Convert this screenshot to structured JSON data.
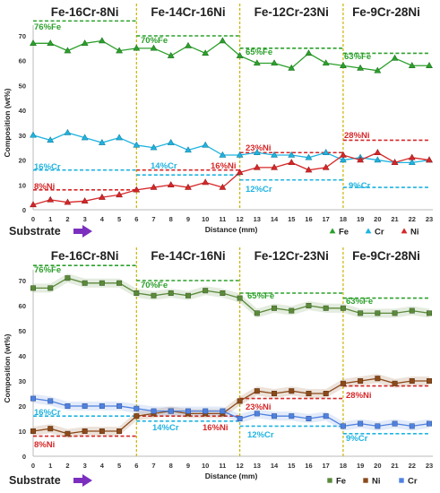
{
  "chart_data": [
    {
      "type": "line",
      "title": "",
      "xlabel": "Distance (mm)",
      "ylabel": "Composition (wt%)",
      "x": [
        0,
        1,
        2,
        3,
        4,
        5,
        6,
        7,
        8,
        9,
        10,
        11,
        12,
        13,
        14,
        15,
        16,
        17,
        18,
        19,
        20,
        21,
        22,
        23
      ],
      "xlim": [
        0,
        23
      ],
      "ylim": [
        0,
        70
      ],
      "yticks": [
        0,
        10,
        20,
        30,
        40,
        50,
        60,
        70
      ],
      "grid": false,
      "legend": "bottom-right",
      "substrate_label": "Substrate",
      "regions": [
        {
          "label": "Fe-16Cr-8Ni",
          "x_start": 0,
          "x_end": 6
        },
        {
          "label": "Fe-14Cr-16Ni",
          "x_start": 6,
          "x_end": 12
        },
        {
          "label": "Fe-12Cr-23Ni",
          "x_start": 12,
          "x_end": 18
        },
        {
          "label": "Fe-9Cr-28Ni",
          "x_start": 18,
          "x_end": 23
        }
      ],
      "boundaries": [
        6,
        12,
        18
      ],
      "series": [
        {
          "name": "Fe",
          "color": "#2ca02c",
          "marker": "triangle",
          "values": [
            67,
            67,
            64,
            67,
            68,
            64,
            65,
            65,
            62,
            66,
            63,
            68,
            62,
            59,
            59,
            57,
            63,
            59,
            58,
            57,
            56,
            61,
            58,
            58
          ]
        },
        {
          "name": "Cr",
          "color": "#1fb3e0",
          "marker": "triangle",
          "values": [
            30,
            28,
            31,
            29,
            27,
            29,
            26,
            25,
            27,
            24,
            26,
            22,
            22,
            23,
            22,
            22,
            21,
            23,
            20,
            21,
            20,
            19,
            19,
            20
          ]
        },
        {
          "name": "Ni",
          "color": "#d62728",
          "marker": "triangle",
          "values": [
            2,
            4,
            3,
            3.5,
            5,
            6,
            8,
            9,
            10,
            9,
            11,
            9,
            15,
            17,
            17,
            19,
            16,
            17,
            22,
            20,
            23,
            19,
            21,
            20
          ]
        }
      ],
      "nominal": [
        {
          "label": "76%Fe",
          "value": 76,
          "x_start": 0,
          "x_end": 6,
          "color": "#2ca02c"
        },
        {
          "label": "70%Fe",
          "value": 70,
          "x_start": 6,
          "x_end": 12,
          "color": "#2ca02c"
        },
        {
          "label": "65%Fe",
          "value": 65,
          "x_start": 12,
          "x_end": 18,
          "color": "#2ca02c"
        },
        {
          "label": "63%Fe",
          "value": 63,
          "x_start": 18,
          "x_end": 23,
          "color": "#2ca02c"
        },
        {
          "label": "16%Cr",
          "value": 16,
          "x_start": 0,
          "x_end": 6,
          "color": "#1fb3e0"
        },
        {
          "label": "14%Cr",
          "value": 14,
          "x_start": 6,
          "x_end": 12,
          "color": "#1fb3e0"
        },
        {
          "label": "12%Cr",
          "value": 12,
          "x_start": 12,
          "x_end": 18,
          "color": "#1fb3e0"
        },
        {
          "label": "9%Cr",
          "value": 9,
          "x_start": 18,
          "x_end": 23,
          "color": "#1fb3e0"
        },
        {
          "label": "8%Ni",
          "value": 8,
          "x_start": 0,
          "x_end": 6,
          "color": "#d62728"
        },
        {
          "label": "16%Ni",
          "value": 16,
          "x_start": 6,
          "x_end": 12,
          "color": "#d62728"
        },
        {
          "label": "23%Ni",
          "value": 23,
          "x_start": 12,
          "x_end": 18,
          "color": "#d62728"
        },
        {
          "label": "28%Ni",
          "value": 28,
          "x_start": 18,
          "x_end": 23,
          "color": "#d62728"
        }
      ]
    },
    {
      "type": "line",
      "title": "",
      "xlabel": "Distance (mm)",
      "ylabel": "Composition (wt%)",
      "x": [
        0,
        1,
        2,
        3,
        4,
        5,
        6,
        7,
        8,
        9,
        10,
        11,
        12,
        13,
        14,
        15,
        16,
        17,
        18,
        19,
        20,
        21,
        22,
        23
      ],
      "xlim": [
        0,
        23
      ],
      "ylim": [
        0,
        70
      ],
      "yticks": [
        0,
        10,
        20,
        30,
        40,
        50,
        60,
        70
      ],
      "grid": false,
      "legend": "bottom-right",
      "substrate_label": "Substrate",
      "regions": [
        {
          "label": "Fe-16Cr-8Ni",
          "x_start": 0,
          "x_end": 6
        },
        {
          "label": "Fe-14Cr-16Ni",
          "x_start": 6,
          "x_end": 12
        },
        {
          "label": "Fe-12Cr-23Ni",
          "x_start": 12,
          "x_end": 18
        },
        {
          "label": "Fe-9Cr-28Ni",
          "x_start": 18,
          "x_end": 23
        }
      ],
      "boundaries": [
        6,
        12,
        18
      ],
      "series": [
        {
          "name": "Fe",
          "color": "#5a8a3a",
          "marker": "square",
          "values": [
            67,
            67,
            71,
            69,
            69,
            69,
            65,
            64,
            65,
            64,
            66,
            65,
            63,
            57,
            59,
            58,
            60,
            59,
            59,
            57,
            57,
            57,
            58,
            57
          ]
        },
        {
          "name": "Ni",
          "color": "#8b4a1a",
          "marker": "square",
          "values": [
            10,
            11,
            9,
            10,
            10,
            10,
            16,
            17,
            18,
            17,
            17,
            17,
            22,
            26,
            25,
            26,
            25,
            25,
            29,
            30,
            31,
            29,
            30,
            30
          ]
        },
        {
          "name": "Cr",
          "color": "#4f81e0",
          "marker": "square",
          "values": [
            23,
            22,
            20,
            20,
            20,
            20,
            19,
            18,
            18,
            18,
            18,
            18,
            15,
            17,
            16,
            16,
            15,
            16,
            12,
            13,
            12,
            13,
            12,
            13
          ]
        }
      ],
      "nominal": [
        {
          "label": "76%Fe",
          "value": 76,
          "x_start": 0,
          "x_end": 6,
          "color": "#2ca02c"
        },
        {
          "label": "70%Fe",
          "value": 70,
          "x_start": 6,
          "x_end": 12,
          "color": "#2ca02c"
        },
        {
          "label": "65%Fe",
          "value": 65,
          "x_start": 12,
          "x_end": 18,
          "color": "#2ca02c"
        },
        {
          "label": "63%Fe",
          "value": 63,
          "x_start": 18,
          "x_end": 23,
          "color": "#2ca02c"
        },
        {
          "label": "16%Cr",
          "value": 16,
          "x_start": 0,
          "x_end": 6,
          "color": "#1fb3e0"
        },
        {
          "label": "14%Cr",
          "value": 14,
          "x_start": 6,
          "x_end": 12,
          "color": "#1fb3e0"
        },
        {
          "label": "12%Cr",
          "value": 12,
          "x_start": 12,
          "x_end": 18,
          "color": "#1fb3e0"
        },
        {
          "label": "9%Cr",
          "value": 9,
          "x_start": 18,
          "x_end": 23,
          "color": "#1fb3e0"
        },
        {
          "label": "8%Ni",
          "value": 8,
          "x_start": 0,
          "x_end": 6,
          "color": "#d62728"
        },
        {
          "label": "16%Ni",
          "value": 16,
          "x_start": 6,
          "x_end": 12,
          "color": "#d62728"
        },
        {
          "label": "23%Ni",
          "value": 23,
          "x_start": 12,
          "x_end": 18,
          "color": "#d62728"
        },
        {
          "label": "28%Ni",
          "value": 28,
          "x_start": 18,
          "x_end": 23,
          "color": "#d62728"
        }
      ]
    }
  ]
}
